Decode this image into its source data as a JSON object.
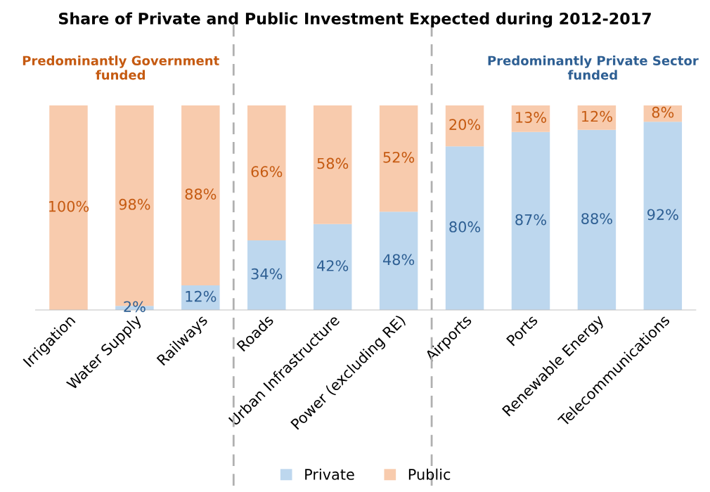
{
  "chart_data": {
    "type": "bar",
    "stacked": true,
    "title": "Share of Private and Public Investment Expected during 2012-2017",
    "categories": [
      "Irrigation",
      "Water Supply",
      "Railways",
      "Roads",
      "Urban Infrastructure",
      "Power (excluding RE)",
      "Airports",
      "Ports",
      "Renewable Energy",
      "Telecommunications"
    ],
    "series": [
      {
        "name": "Private",
        "color": "#bdd7ee",
        "values": [
          0,
          2,
          12,
          34,
          42,
          48,
          80,
          87,
          88,
          92
        ],
        "value_labels": [
          null,
          "2%",
          "12%",
          "34%",
          "42%",
          "48%",
          "80%",
          "87%",
          "88%",
          "92%"
        ]
      },
      {
        "name": "Public",
        "color": "#f8cbad",
        "values": [
          100,
          98,
          88,
          66,
          58,
          52,
          20,
          13,
          12,
          8
        ],
        "value_labels": [
          "100%",
          "98%",
          "88%",
          "66%",
          "58%",
          "52%",
          "20%",
          "13%",
          "12%",
          "8%"
        ]
      }
    ],
    "annotations": [
      "Predominantly Government funded",
      "Predominantly Private Sector funded"
    ],
    "tick_labels": "x",
    "grid": false,
    "legend": "bottom"
  }
}
